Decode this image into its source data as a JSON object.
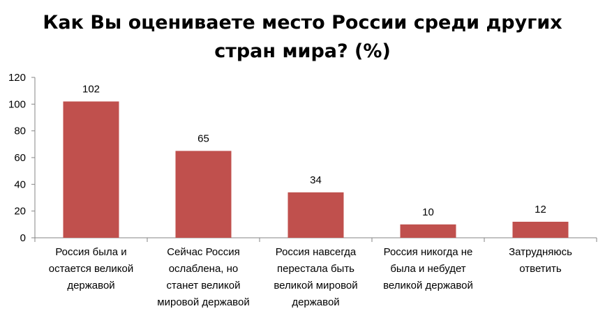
{
  "chart_data": {
    "type": "bar",
    "title": "Как Вы оцениваете место России среди других\nстран мира?  (%)",
    "categories": [
      [
        "Россия была и",
        "остается великой",
        "державой"
      ],
      [
        "Сейчас Россия",
        "ослаблена, но",
        "станет великой",
        "мировой державой"
      ],
      [
        "Россия навсегда",
        "перестала быть",
        "великой мировой",
        "державой"
      ],
      [
        "Россия никогда не",
        "была и небудет",
        "великой державой"
      ],
      [
        "Затрудняюсь",
        "ответить"
      ]
    ],
    "values": [
      102,
      65,
      34,
      10,
      12
    ],
    "ylim": [
      0,
      120
    ],
    "yticks": [
      0,
      20,
      40,
      60,
      80,
      100,
      120
    ],
    "bar_color": "#c0504d",
    "gridlines": false,
    "legend": "none"
  }
}
